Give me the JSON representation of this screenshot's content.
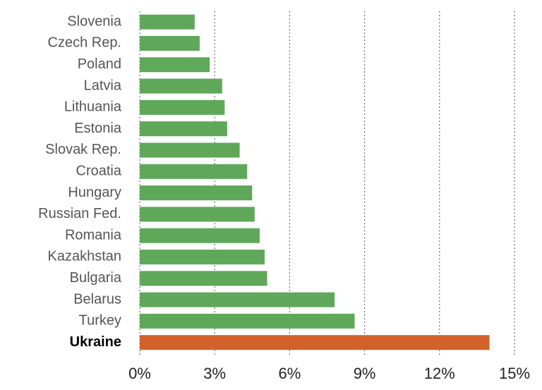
{
  "chart_data": {
    "type": "barh",
    "categories": [
      "Slovenia",
      "Czech Rep.",
      "Poland",
      "Latvia",
      "Lithuania",
      "Estonia",
      "Slovak Rep.",
      "Croatia",
      "Hungary",
      "Russian Fed.",
      "Romania",
      "Kazakhstan",
      "Bulgaria",
      "Belarus",
      "Turkey",
      "Ukraine"
    ],
    "values": [
      2.2,
      2.4,
      2.8,
      3.3,
      3.4,
      3.5,
      4.0,
      4.3,
      4.5,
      4.6,
      4.8,
      5.0,
      5.1,
      7.8,
      8.6,
      14.0
    ],
    "color": "#5fa85a",
    "colors": [
      "#5fa85a",
      "#5fa85a",
      "#5fa85a",
      "#5fa85a",
      "#5fa85a",
      "#5fa85a",
      "#5fa85a",
      "#5fa85a",
      "#5fa85a",
      "#5fa85a",
      "#5fa85a",
      "#5fa85a",
      "#5fa85a",
      "#5fa85a",
      "#5fa85a",
      "#d2622a"
    ],
    "xlim": [
      0,
      15
    ],
    "xticks": [
      {
        "value": 0,
        "label": "0%"
      },
      {
        "value": 3,
        "label": "3%"
      },
      {
        "value": 6,
        "label": "6%"
      },
      {
        "value": 9,
        "label": "9%"
      },
      {
        "value": 12,
        "label": "12%"
      },
      {
        "value": 15,
        "label": "15%"
      }
    ],
    "grid": true
  }
}
